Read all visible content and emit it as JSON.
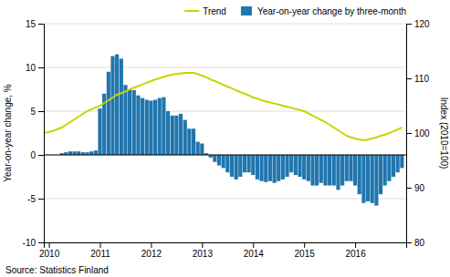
{
  "chart_data": {
    "type": "bar",
    "ylabel": "Year-on-year change, %",
    "y2label": "Index (2010=100)",
    "annotations": [
      "Source: Statistics Finland"
    ],
    "legend": "upper right",
    "grid": true,
    "xlim": [
      2009.9,
      2017.0
    ],
    "xticks": [
      2010,
      2011,
      2012,
      2013,
      2014,
      2015,
      2016
    ],
    "ylim": [
      -10,
      15
    ],
    "yticks": [
      -10,
      -5,
      0,
      5,
      10,
      15
    ],
    "y2lim": [
      80,
      120
    ],
    "y2ticks": [
      80,
      90,
      100,
      110,
      120
    ],
    "series": [
      {
        "name": "Trend",
        "type": "line",
        "axis": "y2",
        "color": "#c8d400",
        "x": [
          2009.9,
          2010.0,
          2010.083,
          2010.167,
          2010.25,
          2010.333,
          2010.417,
          2010.5,
          2010.583,
          2010.667,
          2010.75,
          2010.833,
          2010.917,
          2011.0,
          2011.083,
          2011.167,
          2011.25,
          2011.333,
          2011.417,
          2011.5,
          2011.583,
          2011.667,
          2011.75,
          2011.833,
          2011.917,
          2012.0,
          2012.083,
          2012.167,
          2012.25,
          2012.333,
          2012.417,
          2012.5,
          2012.583,
          2012.667,
          2012.75,
          2012.833,
          2012.917,
          2013.0,
          2013.083,
          2013.167,
          2013.25,
          2013.333,
          2013.417,
          2013.5,
          2013.583,
          2013.667,
          2013.75,
          2013.833,
          2013.917,
          2014.0,
          2014.083,
          2014.167,
          2014.25,
          2014.333,
          2014.417,
          2014.5,
          2014.583,
          2014.667,
          2014.75,
          2014.833,
          2014.917,
          2015.0,
          2015.083,
          2015.167,
          2015.25,
          2015.333,
          2015.417,
          2015.5,
          2015.583,
          2015.667,
          2015.75,
          2015.833,
          2015.917,
          2016.0,
          2016.083,
          2016.167,
          2016.25,
          2016.333,
          2016.417,
          2016.5,
          2016.583,
          2016.667,
          2016.75,
          2016.833,
          2016.917
        ],
        "values": [
          100.0,
          100.2,
          100.4,
          100.7,
          101.0,
          101.5,
          102.0,
          102.5,
          103.0,
          103.5,
          104.0,
          104.3,
          104.7,
          105.0,
          105.5,
          106.0,
          106.5,
          107.0,
          107.3,
          107.6,
          108.0,
          108.3,
          108.6,
          108.9,
          109.2,
          109.5,
          109.8,
          110.0,
          110.3,
          110.5,
          110.7,
          110.8,
          110.9,
          111.0,
          111.0,
          111.0,
          110.8,
          110.5,
          110.2,
          109.8,
          109.5,
          109.2,
          108.8,
          108.5,
          108.2,
          107.8,
          107.5,
          107.2,
          106.9,
          106.5,
          106.3,
          106.0,
          105.8,
          105.6,
          105.4,
          105.2,
          105.0,
          104.8,
          104.6,
          104.4,
          104.2,
          104.0,
          103.6,
          103.2,
          102.8,
          102.4,
          102.0,
          101.5,
          101.0,
          100.5,
          100.0,
          99.5,
          99.2,
          99.0,
          98.8,
          98.7,
          98.8,
          99.0,
          99.2,
          99.5,
          99.7,
          100.0,
          100.3,
          100.7,
          101.0
        ]
      },
      {
        "name": "Year-on-year change by three-month",
        "type": "bar",
        "color": "#2176ae",
        "x": [
          2010.083,
          2010.167,
          2010.25,
          2010.333,
          2010.417,
          2010.5,
          2010.583,
          2010.667,
          2010.75,
          2010.833,
          2010.917,
          2011.0,
          2011.083,
          2011.167,
          2011.25,
          2011.333,
          2011.417,
          2011.5,
          2011.583,
          2011.667,
          2011.75,
          2011.833,
          2011.917,
          2012.0,
          2012.083,
          2012.167,
          2012.25,
          2012.333,
          2012.417,
          2012.5,
          2012.583,
          2012.667,
          2012.75,
          2012.833,
          2012.917,
          2013.0,
          2013.083,
          2013.167,
          2013.25,
          2013.333,
          2013.417,
          2013.5,
          2013.583,
          2013.667,
          2013.75,
          2013.833,
          2013.917,
          2014.0,
          2014.083,
          2014.167,
          2014.25,
          2014.333,
          2014.417,
          2014.5,
          2014.583,
          2014.667,
          2014.75,
          2014.833,
          2014.917,
          2015.0,
          2015.083,
          2015.167,
          2015.25,
          2015.333,
          2015.417,
          2015.5,
          2015.583,
          2015.667,
          2015.75,
          2015.833,
          2015.917,
          2016.0,
          2016.083,
          2016.167,
          2016.25,
          2016.333,
          2016.417,
          2016.5,
          2016.583,
          2016.667,
          2016.75,
          2016.833,
          2016.917
        ],
        "values": [
          0.0,
          0.0,
          0.2,
          0.3,
          0.4,
          0.4,
          0.4,
          0.3,
          0.3,
          0.4,
          0.5,
          5.3,
          7.0,
          9.5,
          11.3,
          11.5,
          11.0,
          8.0,
          7.5,
          7.4,
          6.8,
          6.5,
          6.3,
          6.2,
          6.3,
          6.5,
          6.6,
          5.0,
          4.5,
          4.5,
          4.7,
          4.0,
          3.0,
          3.0,
          1.5,
          1.3,
          0.2,
          -0.3,
          -0.8,
          -1.2,
          -1.5,
          -2.0,
          -2.5,
          -2.8,
          -2.5,
          -2.0,
          -2.0,
          -2.3,
          -2.8,
          -3.0,
          -3.1,
          -3.0,
          -3.2,
          -3.0,
          -2.8,
          -2.5,
          -2.0,
          -2.3,
          -2.5,
          -2.8,
          -3.0,
          -3.5,
          -3.5,
          -3.2,
          -3.5,
          -3.5,
          -3.5,
          -4.0,
          -3.5,
          -3.0,
          -3.0,
          -3.5,
          -4.5,
          -5.5,
          -5.3,
          -5.5,
          -5.8,
          -4.5,
          -3.5,
          -3.0,
          -2.5,
          -2.0,
          -1.5
        ]
      }
    ]
  }
}
